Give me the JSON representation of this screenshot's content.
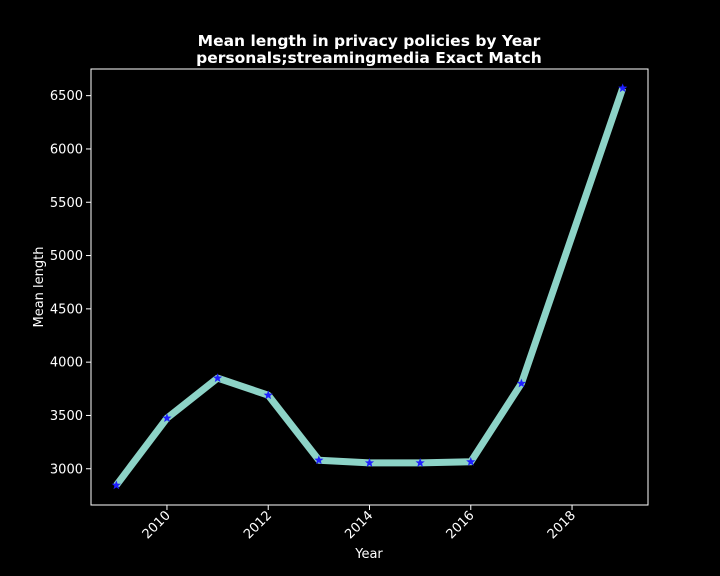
{
  "chart_data": {
    "type": "line",
    "title_line1": "Mean length in privacy policies by Year",
    "title_line2": "personals;streamingmedia Exact Match",
    "xlabel": "Year",
    "ylabel": "Mean length",
    "x": [
      2009,
      2010,
      2011,
      2012,
      2013,
      2014,
      2015,
      2016,
      2017,
      2019
    ],
    "series": [
      {
        "values": [
          2845,
          3475,
          3850,
          3690,
          3080,
          3055,
          3055,
          3065,
          3800,
          6570
        ]
      }
    ],
    "xlim": [
      2008.5,
      2019.5
    ],
    "ylim": [
      2660,
      6750
    ],
    "xticks": [
      2010,
      2012,
      2014,
      2016,
      2018
    ],
    "yticks": [
      3000,
      3500,
      4000,
      4500,
      5000,
      5500,
      6000,
      6500
    ],
    "grid": false,
    "line_color": "#8dd3c7",
    "marker_color": "#1f1fff",
    "marker": "star",
    "background_color": "#000000",
    "axis_color": "#ffffff"
  }
}
